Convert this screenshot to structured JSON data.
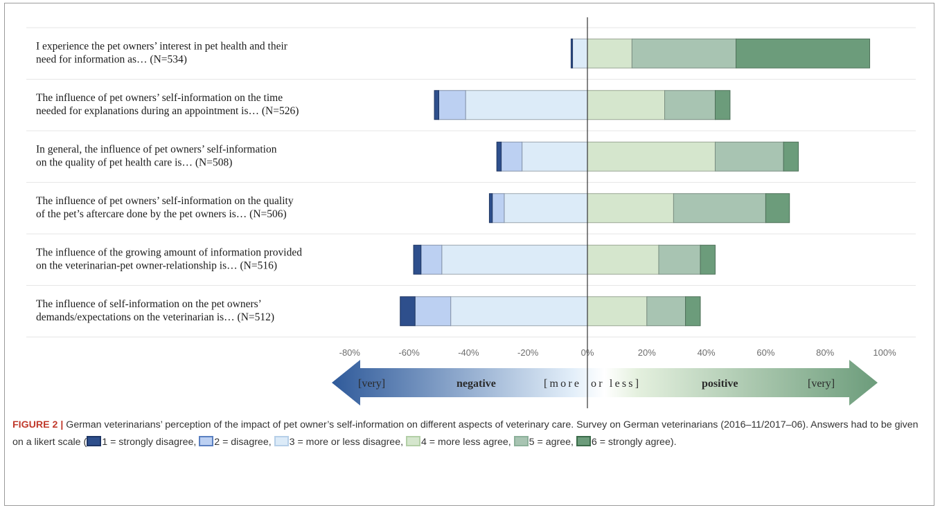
{
  "chart_data": {
    "type": "bar",
    "orientation": "horizontal",
    "stacked": "diverging",
    "categories": [
      [
        "I experience the pet owners’ interest in pet health and their",
        "need for information as… (N=534)"
      ],
      [
        "The influence of pet owners’ self-information on the time",
        "needed for explanations during an appointment is… (N=526)"
      ],
      [
        "In general, the influence of pet owners’ self-information",
        "on the quality of pet health care is… (N=508)"
      ],
      [
        "The influence of pet owners’ self-information on the quality",
        "of the pet’s aftercare done by the pet owners is… (N=506)"
      ],
      [
        "The influence of the growing amount of information provided",
        "on the veterinarian-pet owner-relationship is… (N=516)"
      ],
      [
        "The influence of self-information on the pet owners’",
        "demands/expectations on the veterinarian is… (N=512)"
      ]
    ],
    "series": [
      {
        "name": "1 = strongly disagree",
        "side": "negative",
        "color": "#2e4f8c",
        "values": [
          0.5,
          1.5,
          1.5,
          1,
          2.5,
          5
        ]
      },
      {
        "name": "2 = disagree",
        "side": "negative",
        "color": "#bcd0f2",
        "values": [
          0,
          9,
          7,
          4,
          7,
          12
        ]
      },
      {
        "name": "3 = more or less disagree",
        "side": "negative",
        "color": "#dcebf8",
        "values": [
          5,
          41,
          22,
          28,
          49,
          46
        ]
      },
      {
        "name": "4 = more less agree",
        "side": "positive",
        "color": "#d5e6cd",
        "values": [
          15,
          26,
          43,
          29,
          24,
          20
        ]
      },
      {
        "name": "5 = agree",
        "side": "positive",
        "color": "#a8c4b2",
        "values": [
          35,
          17,
          23,
          31,
          14,
          13
        ]
      },
      {
        "name": "6 = strongly agree",
        "side": "positive",
        "color": "#6c9c7b",
        "values": [
          45,
          5,
          5,
          8,
          5,
          5
        ]
      }
    ],
    "x_ticks": [
      "-80%",
      "-60%",
      "-40%",
      "-20%",
      "0%",
      "20%",
      "40%",
      "60%",
      "80%",
      "100%"
    ],
    "xlim": [
      -80,
      100
    ],
    "x_unit": "%",
    "grid": "horizontal separators"
  },
  "arrow_labels": {
    "very_negative": "[very]",
    "negative": "negative",
    "more": "[more",
    "or_less": "or less]",
    "positive": "positive",
    "very_positive": "[very]"
  },
  "caption": {
    "figure_number": "FIGURE 2 |",
    "text_1": " German veterinarians’ perception of the impact of pet owner’s self-information on different aspects of veterinary care. Survey on German veterinarians (2016–11/2017–06). Answers had to be given on a likert scale (",
    "legend": [
      {
        "label": "1 = strongly disagree,",
        "fill": "#2e4f8c",
        "border": "#1d3566"
      },
      {
        "label": "2 = disagree,",
        "fill": "#bcd0f2",
        "border": "#5a7fc0"
      },
      {
        "label": "3 = more or less disagree,",
        "fill": "#dcebf8",
        "border": "#b6cfe8"
      },
      {
        "label": "4 = more less agree,",
        "fill": "#d5e6cd",
        "border": "#b3cfa7"
      },
      {
        "label": "5 = agree,",
        "fill": "#a8c4b2",
        "border": "#8cb09a"
      },
      {
        "label": "6 = strongly agree).",
        "fill": "#6c9c7b",
        "border": "#3b6b4a"
      }
    ]
  }
}
